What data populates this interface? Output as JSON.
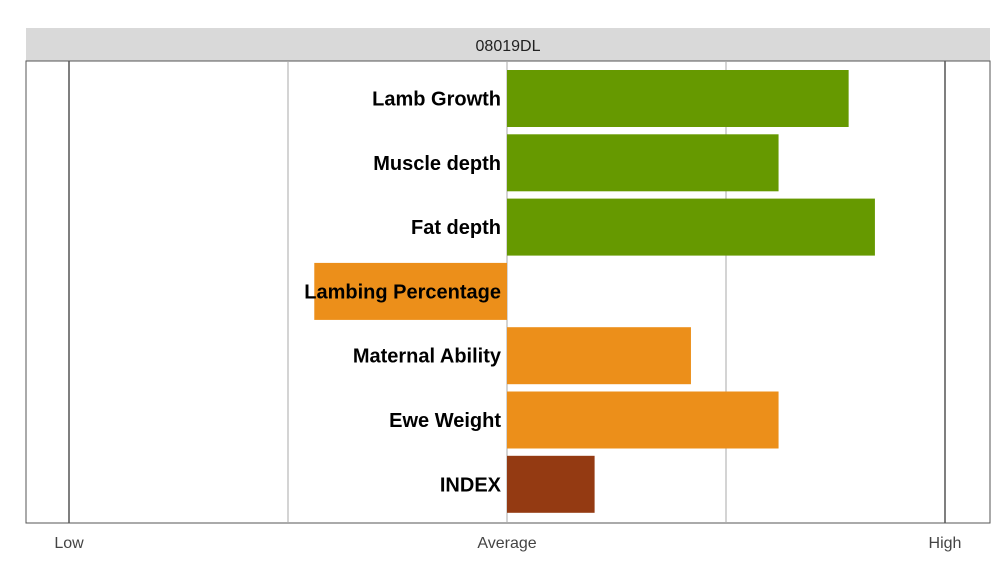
{
  "chart_data": {
    "type": "bar",
    "orientation": "horizontal",
    "title": "08019DL",
    "categories": [
      "Lamb Growth",
      "Muscle depth",
      "Fat depth",
      "Lambing Percentage",
      "Maternal Ability",
      "Ewe Weight",
      "INDEX"
    ],
    "values": [
      0.78,
      0.62,
      0.84,
      -0.44,
      0.42,
      0.62,
      0.2
    ],
    "colors": [
      "#669900",
      "#669900",
      "#669900",
      "#ec8f1a",
      "#ec8f1a",
      "#ec8f1a",
      "#943a12"
    ],
    "xlim": [
      -1,
      1
    ],
    "x_ticks": [
      {
        "value": -1,
        "label": "Low"
      },
      {
        "value": 0,
        "label": "Average"
      },
      {
        "value": 1,
        "label": "High"
      }
    ],
    "grid_values": [
      -1,
      -0.5,
      0,
      0.5,
      1
    ],
    "grid": true,
    "legend": "none"
  }
}
